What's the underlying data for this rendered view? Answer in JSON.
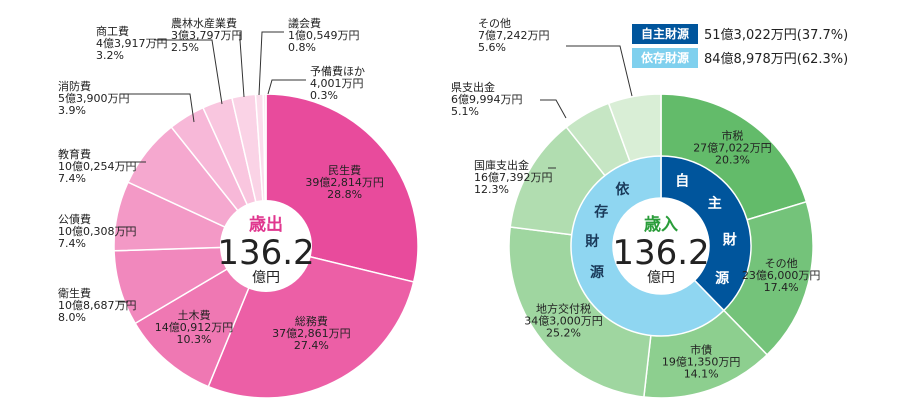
{
  "chart_data": [
    {
      "type": "pie",
      "center": {
        "title": "歳出",
        "total": "136.2",
        "unit": "億円"
      },
      "slices": [
        {
          "name": "民生費",
          "amount": "39億2,814万円",
          "percent": 28.8,
          "percent_label": "28.8%",
          "color": "#e84b9c"
        },
        {
          "name": "総務費",
          "amount": "37億2,861万円",
          "percent": 27.4,
          "percent_label": "27.4%",
          "color": "#ec5fa6"
        },
        {
          "name": "土木費",
          "amount": "14億0,912万円",
          "percent": 10.3,
          "percent_label": "10.3%",
          "color": "#ef78b3"
        },
        {
          "name": "衛生費",
          "amount": "10億8,687万円",
          "percent": 8.0,
          "percent_label": "8.0%",
          "color": "#f188bd"
        },
        {
          "name": "公債費",
          "amount": "10億0,308万円",
          "percent": 7.4,
          "percent_label": "7.4%",
          "color": "#f399c6"
        },
        {
          "name": "教育費",
          "amount": "10億0,254万円",
          "percent": 7.4,
          "percent_label": "7.4%",
          "color": "#f5a8cf"
        },
        {
          "name": "消防費",
          "amount": "5億3,900万円",
          "percent": 3.9,
          "percent_label": "3.9%",
          "color": "#f7b8d8"
        },
        {
          "name": "商工費",
          "amount": "4億3,917万円",
          "percent": 3.2,
          "percent_label": "3.2%",
          "color": "#f9c6df"
        },
        {
          "name": "農林水産業費",
          "amount": "3億3,797万円",
          "percent": 2.5,
          "percent_label": "2.5%",
          "color": "#fad3e6"
        },
        {
          "name": "議会費",
          "amount": "1億0,549万円",
          "percent": 0.8,
          "percent_label": "0.8%",
          "color": "#fbdeec"
        },
        {
          "name": "予備費ほか",
          "amount": "4,001万円",
          "percent": 0.3,
          "percent_label": "0.3%",
          "color": "#fde8f2"
        }
      ]
    },
    {
      "type": "pie",
      "center": {
        "title": "歳入",
        "total": "136.2",
        "unit": "億円"
      },
      "legend": [
        {
          "badge": "自主財源",
          "text": "51億3,022万円(37.7%)",
          "color": "#00559c"
        },
        {
          "badge": "依存財源",
          "text": "84億8,978万円(62.3%)",
          "color": "#7fd0ee"
        }
      ],
      "inner_ring": [
        {
          "name": "自主財源",
          "chars": [
            "自",
            "主",
            "財",
            "源"
          ],
          "percent": 37.7,
          "color": "#00559c"
        },
        {
          "name": "依存財源",
          "chars": [
            "依",
            "存",
            "財",
            "源"
          ],
          "percent": 62.3,
          "color": "#8fd6f1"
        }
      ],
      "slices": [
        {
          "name": "市税",
          "amount": "27億7,022万円",
          "percent": 20.3,
          "percent_label": "20.3%",
          "color": "#63bb6a"
        },
        {
          "name": "その他",
          "amount": "23億6,000万円",
          "percent": 17.4,
          "percent_label": "17.4%",
          "color": "#74c37a"
        },
        {
          "name": "市債",
          "amount": "19億1,350万円",
          "percent": 14.1,
          "percent_label": "14.1%",
          "color": "#8dcf8f"
        },
        {
          "name": "地方交付税",
          "amount": "34億3,000万円",
          "percent": 25.2,
          "percent_label": "25.2%",
          "color": "#9fd6a0"
        },
        {
          "name": "国庫支出金",
          "amount": "16億7,392万円",
          "percent": 12.3,
          "percent_label": "12.3%",
          "color": "#b1ddb0"
        },
        {
          "name": "県支出金",
          "amount": "6億9,994万円",
          "percent": 5.1,
          "percent_label": "5.1%",
          "color": "#c6e6c4"
        },
        {
          "name": "その他",
          "amount": "7億7,242万円",
          "percent": 5.6,
          "percent_label": "5.6%",
          "color": "#d9eed6"
        }
      ]
    }
  ]
}
